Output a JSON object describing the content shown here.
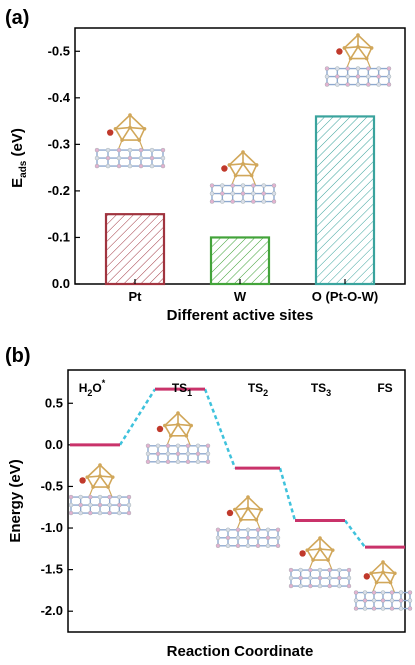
{
  "colors": {
    "bar_pt": "#a0343f",
    "bar_w": "#43a33a",
    "bar_o": "#3aa39d",
    "level": "#c9336a",
    "connector": "#3fc2dc",
    "slab_blue": "#8fa9cf",
    "slab_pink": "#e2b3d1",
    "cluster_gold": "#d1a75a",
    "adsorbate_red": "#c0392b"
  },
  "panels": {
    "a": {
      "letter": "(a)"
    },
    "b": {
      "letter": "(b)"
    }
  },
  "chart_data": [
    {
      "type": "bar",
      "panel": "(a)",
      "categories": [
        "Pt",
        "W",
        "O (Pt-O-W)"
      ],
      "values": [
        -0.15,
        -0.1,
        -0.36
      ],
      "xlabel": "Different active sites",
      "ylabel": "E_ads (eV)",
      "ylabel_main": "E",
      "ylabel_sub": "ads",
      "ylabel_unit": " (eV)",
      "ylim": [
        0.0,
        -0.55
      ],
      "yticks": [
        "0.0",
        "-0.1",
        "-0.2",
        "-0.3",
        "-0.4",
        "-0.5"
      ],
      "ytick_values": [
        0.0,
        -0.1,
        -0.2,
        -0.3,
        -0.4,
        -0.5
      ],
      "axis_inverted": true,
      "bar_style": "hatched",
      "insets": "atomic structure models above each bar"
    },
    {
      "type": "line",
      "panel": "(b)",
      "style": "reaction energy profile",
      "states": [
        {
          "main": "H",
          "sub": "2",
          "rest": "O",
          "sup": "*"
        },
        {
          "main": "TS",
          "sub": "1",
          "rest": "",
          "sup": ""
        },
        {
          "main": "TS",
          "sub": "2",
          "rest": "",
          "sup": ""
        },
        {
          "main": "TS",
          "sub": "3",
          "rest": "",
          "sup": ""
        },
        {
          "main": "FS",
          "sub": "",
          "rest": "",
          "sup": ""
        }
      ],
      "energies": [
        0.0,
        0.67,
        -0.28,
        -0.91,
        -1.23
      ],
      "xlabel": "Reaction Coordinate",
      "ylabel": "Energy (eV)",
      "ylim": [
        -2.25,
        0.9
      ],
      "yticks": [
        "0.5",
        "0.0",
        "-0.5",
        "-1.0",
        "-1.5",
        "-2.0"
      ],
      "ytick_values": [
        0.5,
        0.0,
        -0.5,
        -1.0,
        -1.5,
        -2.0
      ],
      "insets": "atomic structure models below each level"
    }
  ]
}
